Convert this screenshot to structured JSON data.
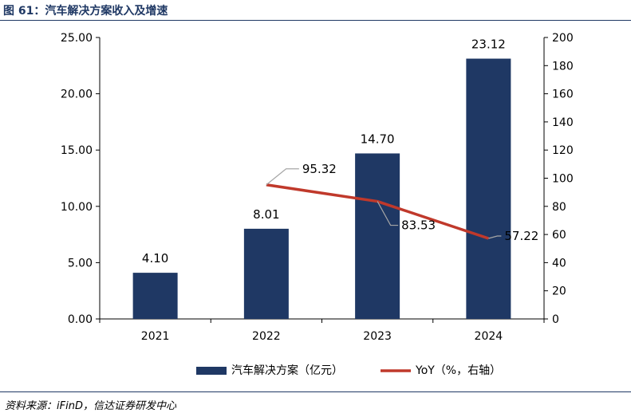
{
  "header": {
    "figure_title": "图 61：汽车解决方案收入及增速"
  },
  "footer": {
    "source": "资料来源：iFinD，信达证券研发中心"
  },
  "colors": {
    "bar": "#1f3864",
    "line": "#c0392b",
    "title": "#1f3864",
    "axis": "#000000"
  },
  "chart_data": {
    "type": "bar",
    "title": "汽车解决方案收入及增速",
    "categories": [
      "2021",
      "2022",
      "2023",
      "2024"
    ],
    "series": [
      {
        "name": "汽车解决方案（亿元）",
        "type": "bar",
        "axis": "left",
        "values": [
          4.1,
          8.01,
          14.7,
          23.12
        ],
        "labels": [
          "4.10",
          "8.01",
          "14.70",
          "23.12"
        ]
      },
      {
        "name": "YoY（%，右轴）",
        "type": "line",
        "axis": "right",
        "values": [
          null,
          95.32,
          83.53,
          57.22
        ],
        "labels": [
          "",
          "95.32",
          "83.53",
          "57.22"
        ]
      }
    ],
    "left_axis": {
      "min": 0,
      "max": 25,
      "ticks": [
        0,
        5,
        10,
        15,
        20,
        25
      ],
      "tick_labels": [
        "0.00",
        "5.00",
        "10.00",
        "15.00",
        "20.00",
        "25.00"
      ]
    },
    "right_axis": {
      "min": 0,
      "max": 200,
      "ticks": [
        0,
        20,
        40,
        60,
        80,
        100,
        120,
        140,
        160,
        180,
        200
      ],
      "tick_labels": [
        "0",
        "20",
        "40",
        "60",
        "80",
        "100",
        "120",
        "140",
        "160",
        "180",
        "200"
      ]
    },
    "legend_position": "bottom",
    "grid": false
  }
}
